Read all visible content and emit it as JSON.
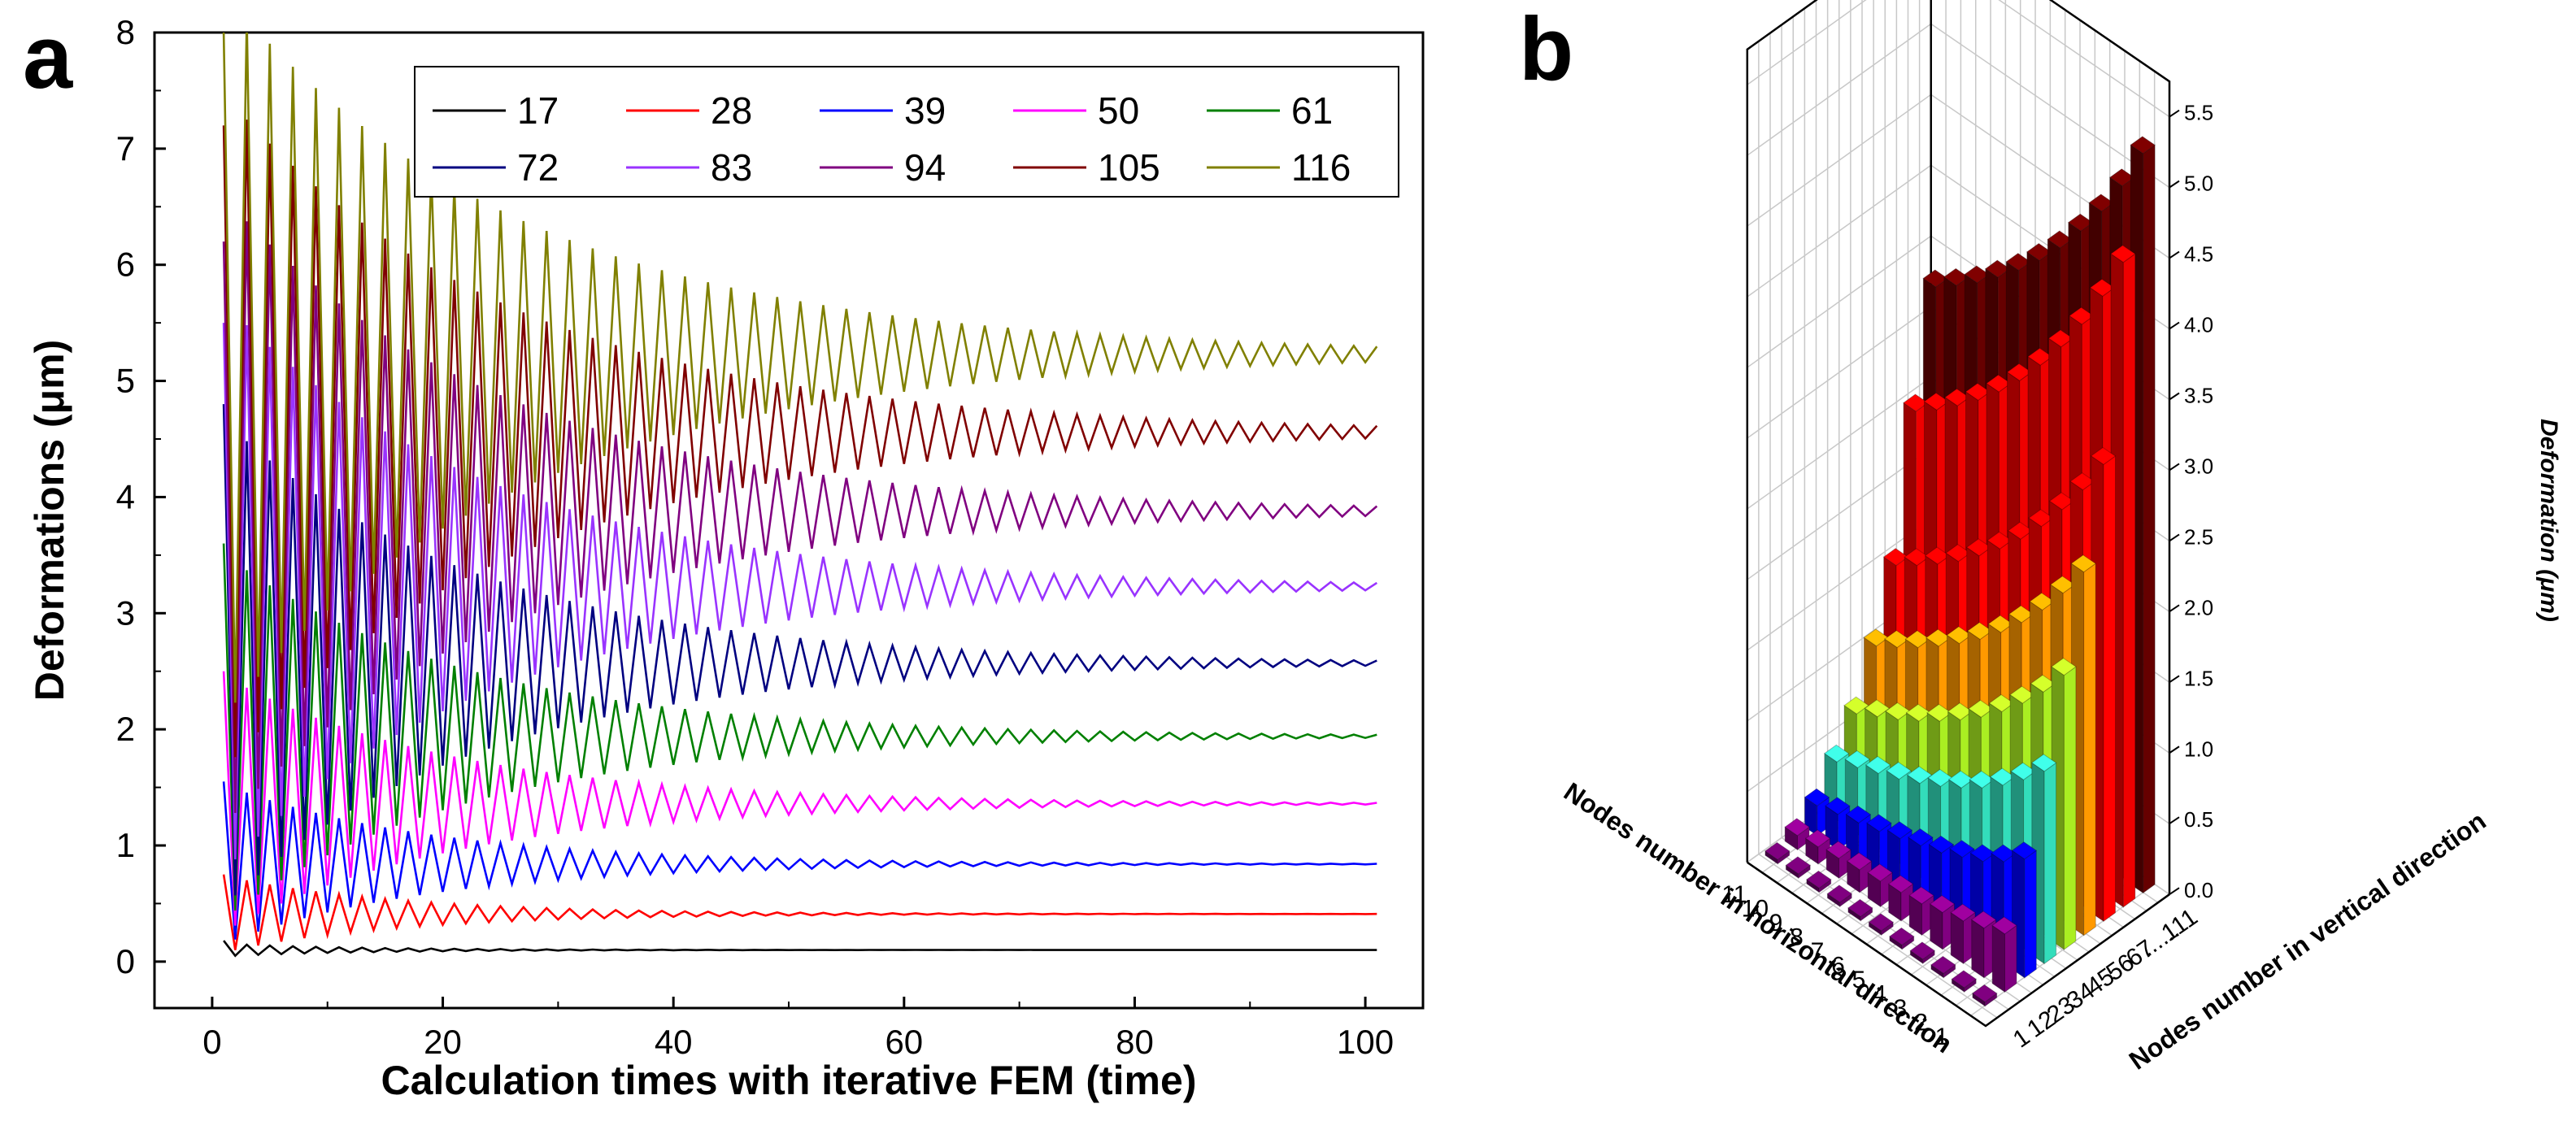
{
  "panel_a": {
    "label": "a",
    "chart_data": {
      "type": "line",
      "title": "",
      "xlabel": "Calculation times with iterative FEM (time)",
      "ylabel": "Deformations (μm)",
      "xlim": [
        -5,
        105
      ],
      "ylim": [
        -0.4,
        8
      ],
      "xticks": [
        0,
        20,
        40,
        60,
        80,
        100
      ],
      "yticks": [
        0,
        1,
        2,
        3,
        4,
        5,
        6,
        7,
        8
      ],
      "legend_position": "top-right",
      "x_start": 1,
      "x_end": 101,
      "oscillation_period": 2,
      "series": [
        {
          "name": "17",
          "color": "#000000",
          "initial": 0.18,
          "final": 0.1,
          "first_amplitude": 0.1,
          "decay_time": 12
        },
        {
          "name": "28",
          "color": "#ff0000",
          "initial": 0.75,
          "final": 0.41,
          "first_amplitude": 0.62,
          "decay_time": 15
        },
        {
          "name": "39",
          "color": "#0000ff",
          "initial": 1.55,
          "final": 0.84,
          "first_amplitude": 1.3,
          "decay_time": 18
        },
        {
          "name": "50",
          "color": "#ff00ff",
          "initial": 2.5,
          "final": 1.36,
          "first_amplitude": 2.1,
          "decay_time": 20
        },
        {
          "name": "61",
          "color": "#008000",
          "initial": 3.6,
          "final": 1.94,
          "first_amplitude": 3.0,
          "decay_time": 21
        },
        {
          "name": "72",
          "color": "#000080",
          "initial": 4.8,
          "final": 2.57,
          "first_amplitude": 4.0,
          "decay_time": 22
        },
        {
          "name": "83",
          "color": "#9933ff",
          "initial": 5.5,
          "final": 3.23,
          "first_amplitude": 4.7,
          "decay_time": 23
        },
        {
          "name": "94",
          "color": "#800080",
          "initial": 6.2,
          "final": 3.88,
          "first_amplitude": 5.2,
          "decay_time": 24
        },
        {
          "name": "105",
          "color": "#800000",
          "initial": 7.2,
          "final": 4.56,
          "first_amplitude": 5.6,
          "decay_time": 25
        },
        {
          "name": "116",
          "color": "#808000",
          "initial": 8.0,
          "final": 5.23,
          "first_amplitude": 6.0,
          "decay_time": 26
        }
      ]
    }
  },
  "panel_b": {
    "label": "b",
    "chart_data": {
      "type": "bar3d",
      "title": "",
      "xlabel": "Nodes number in horizontal direction",
      "ylabel": "Nodes number in vertical direction",
      "zlabel": "Deformation (μm)",
      "zlim": [
        0,
        5.75
      ],
      "zticks": [
        "0.0",
        "0.5",
        "1.0",
        "1.5",
        "2.0",
        "2.5",
        "3.0",
        "3.5",
        "4.0",
        "4.5",
        "5.0",
        "5.5"
      ],
      "horizontal_ticks": [
        "1",
        "2",
        "3",
        "4",
        "5",
        "6",
        "7",
        "8",
        "9",
        "10",
        "11"
      ],
      "vertical_ticks": [
        "1",
        "12",
        "23",
        "34",
        "45",
        "56",
        "67",
        "......",
        "111"
      ],
      "rows": [
        {
          "vertical_node": "1",
          "color": "#660066",
          "values": [
            0.0,
            0.0,
            0.0,
            0.0,
            0.0,
            0.0,
            0.0,
            0.0,
            0.0,
            0.0,
            0.0
          ]
        },
        {
          "vertical_node": "12",
          "color": "#800080",
          "values": [
            0.41,
            0.35,
            0.3,
            0.26,
            0.22,
            0.2,
            0.18,
            0.16,
            0.14,
            0.12,
            0.1
          ]
        },
        {
          "vertical_node": "23",
          "color": "#0000ff",
          "values": [
            0.84,
            0.72,
            0.62,
            0.55,
            0.48,
            0.43,
            0.38,
            0.33,
            0.29,
            0.25,
            0.21
          ]
        },
        {
          "vertical_node": "34",
          "color": "#33ddbb",
          "values": [
            1.36,
            1.2,
            1.06,
            0.94,
            0.84,
            0.75,
            0.67,
            0.6,
            0.54,
            0.48,
            0.42
          ]
        },
        {
          "vertical_node": "45",
          "color": "#aaee22",
          "values": [
            1.94,
            1.72,
            1.54,
            1.38,
            1.24,
            1.12,
            1.01,
            0.91,
            0.82,
            0.74,
            0.66
          ]
        },
        {
          "vertical_node": "56",
          "color": "#ff9900",
          "values": [
            2.57,
            2.32,
            2.1,
            1.91,
            1.74,
            1.59,
            1.46,
            1.34,
            1.23,
            1.13,
            1.04
          ]
        },
        {
          "vertical_node": "67",
          "color": "#ff0000",
          "values": [
            3.23,
            2.95,
            2.71,
            2.49,
            2.3,
            2.13,
            1.98,
            1.84,
            1.72,
            1.61,
            1.51
          ]
        },
        {
          "vertical_node": "......",
          "color": "#ee0000",
          "values": [
            4.56,
            4.22,
            3.92,
            3.66,
            3.43,
            3.22,
            3.04,
            2.88,
            2.74,
            2.61,
            2.5
          ]
        },
        {
          "vertical_node": "111",
          "color": "#660000",
          "values": [
            5.23,
            4.9,
            4.62,
            4.38,
            4.16,
            3.97,
            3.8,
            3.65,
            3.51,
            3.39,
            3.28
          ]
        }
      ]
    }
  }
}
